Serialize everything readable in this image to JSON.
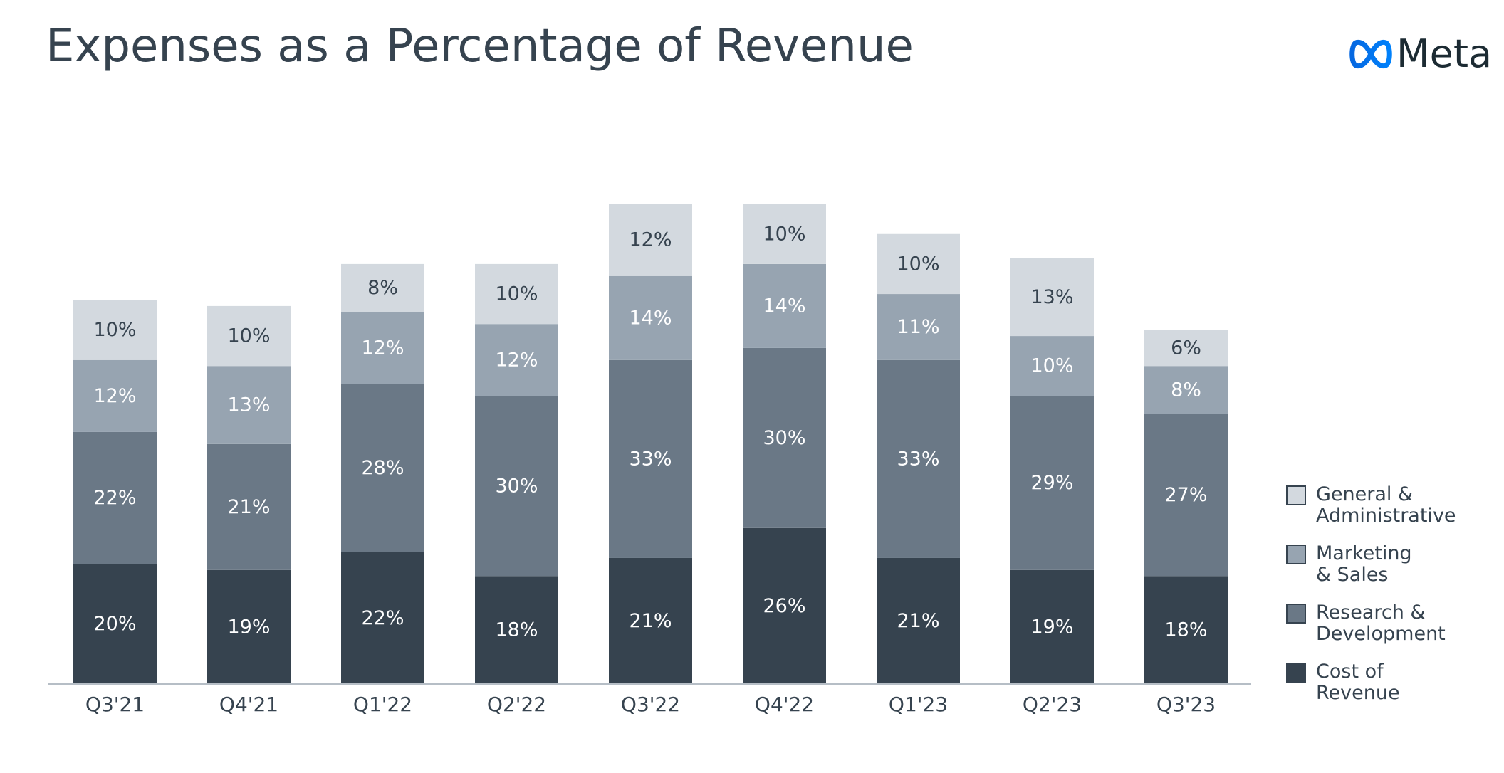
{
  "header": {
    "title": "Expenses as a Percentage of Revenue",
    "logo_text": "Meta"
  },
  "chart_data": {
    "type": "bar",
    "stacked": true,
    "title": "Expenses as a Percentage of Revenue",
    "xlabel": "",
    "ylabel": "",
    "categories": [
      "Q3'21",
      "Q4'21",
      "Q1'22",
      "Q2'22",
      "Q3'22",
      "Q4'22",
      "Q1'23",
      "Q2'23",
      "Q3'23"
    ],
    "series": [
      {
        "name": "Cost of\nRevenue",
        "color": "#36434f",
        "label_color": "#ffffff",
        "values": [
          20,
          19,
          22,
          18,
          21,
          26,
          21,
          19,
          18
        ]
      },
      {
        "name": "Research &\nDevelopment",
        "color": "#6a7886",
        "label_color": "#ffffff",
        "values": [
          22,
          21,
          28,
          30,
          33,
          30,
          33,
          29,
          27
        ]
      },
      {
        "name": "Marketing\n& Sales",
        "color": "#97a4b1",
        "label_color": "#ffffff",
        "values": [
          12,
          13,
          12,
          12,
          14,
          14,
          11,
          10,
          8
        ]
      },
      {
        "name": "General &\nAdministrative",
        "color": "#d3d9df",
        "label_color": "#36434f",
        "values": [
          10,
          10,
          8,
          10,
          12,
          10,
          10,
          13,
          6
        ]
      }
    ],
    "labels": [
      [
        "20%",
        "19%",
        "22%",
        "18%",
        "21%",
        "26%",
        "21%",
        "19%",
        "18%"
      ],
      [
        "22%",
        "21%",
        "28%",
        "30%",
        "33%",
        "30%",
        "33%",
        "29%",
        "27%"
      ],
      [
        "12%",
        "13%",
        "12%",
        "12%",
        "14%",
        "14%",
        "11%",
        "10%",
        "8%"
      ],
      [
        "10%",
        "10%",
        "8%",
        "10%",
        "12%",
        "10%",
        "10%",
        "13%",
        "6%"
      ]
    ],
    "ylim": [
      0,
      80
    ],
    "grid": false,
    "legend_position": "right"
  }
}
